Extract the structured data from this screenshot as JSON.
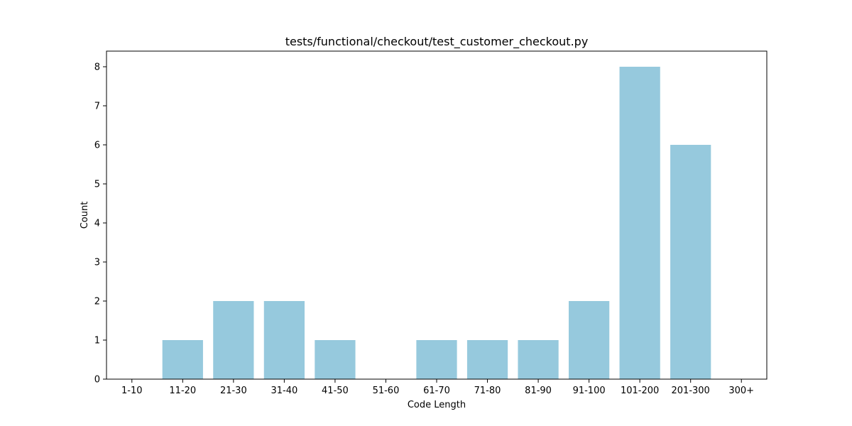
{
  "chart_data": {
    "type": "bar",
    "title": "tests/functional/checkout/test_customer_checkout.py",
    "xlabel": "Code Length",
    "ylabel": "Count",
    "categories": [
      "1-10",
      "11-20",
      "21-30",
      "31-40",
      "41-50",
      "51-60",
      "61-70",
      "71-80",
      "81-90",
      "91-100",
      "101-200",
      "201-300",
      "300+"
    ],
    "values": [
      0,
      1,
      2,
      2,
      1,
      0,
      1,
      1,
      1,
      2,
      8,
      6,
      0
    ],
    "ylim": [
      0,
      8.4
    ],
    "yticks": [
      0,
      1,
      2,
      3,
      4,
      5,
      6,
      7,
      8
    ],
    "bar_color": "#96c9dd",
    "grid": false,
    "legend": "none"
  }
}
